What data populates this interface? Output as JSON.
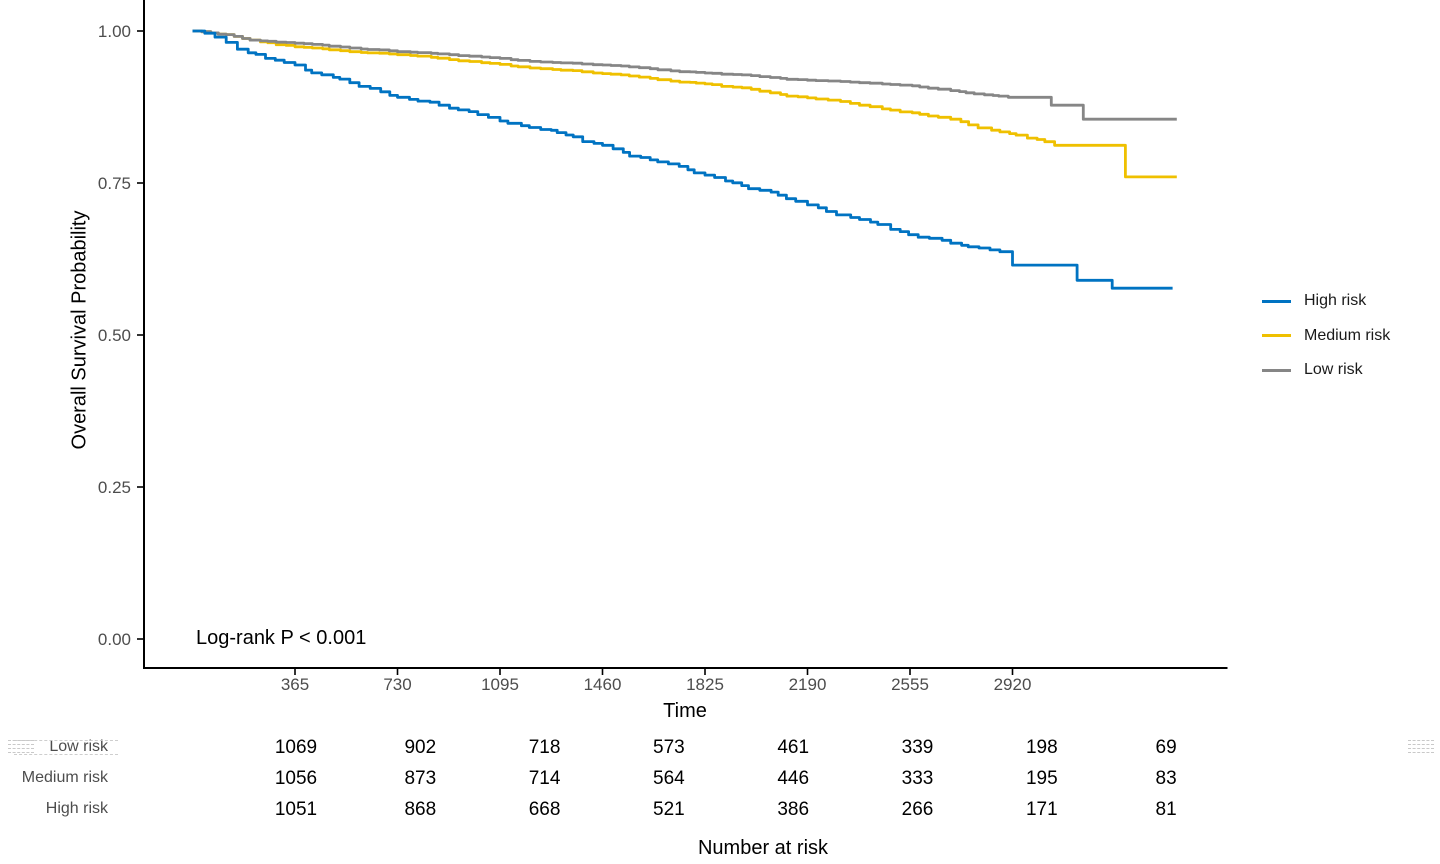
{
  "figure": {
    "ylabel": "Overall Survival Probability",
    "xlabel": "Time",
    "annotation": "Log-rank P < 0.001",
    "risk_table_title": "Number at risk",
    "background": "#ffffff",
    "axis_color": "#000000",
    "tick_text_color": "#4d4d4d"
  },
  "chart_data": {
    "type": "line",
    "subtype": "kaplan-meier-step-curves",
    "title": "",
    "xlabel": "Time",
    "ylabel": "Overall Survival Probability",
    "xlim": [
      0,
      3684
    ],
    "ylim": [
      0,
      1.05
    ],
    "grid": false,
    "legend_position": "right",
    "x_ticks": [
      365,
      730,
      1095,
      1460,
      1825,
      2190,
      2555,
      2920
    ],
    "y_ticks": [
      {
        "label": "1.00",
        "value": 1.0
      },
      {
        "label": "0.75",
        "value": 0.75
      },
      {
        "label": "0.50",
        "value": 0.5
      },
      {
        "label": "0.25",
        "value": 0.25
      },
      {
        "label": "0.00",
        "value": 0.0
      }
    ],
    "annotation": "Log-rank P < 0.001",
    "series": [
      {
        "name": "High risk",
        "color": "#0073C2",
        "points": [
          [
            0,
            1.0
          ],
          [
            80,
            0.99
          ],
          [
            160,
            0.97
          ],
          [
            260,
            0.955
          ],
          [
            365,
            0.944
          ],
          [
            460,
            0.928
          ],
          [
            560,
            0.915
          ],
          [
            670,
            0.9
          ],
          [
            730,
            0.891
          ],
          [
            915,
            0.873
          ],
          [
            1095,
            0.852
          ],
          [
            1240,
            0.838
          ],
          [
            1330,
            0.829
          ],
          [
            1460,
            0.812
          ],
          [
            1630,
            0.788
          ],
          [
            1825,
            0.763
          ],
          [
            2020,
            0.738
          ],
          [
            2190,
            0.714
          ],
          [
            2375,
            0.69
          ],
          [
            2520,
            0.67
          ],
          [
            2700,
            0.651
          ],
          [
            2840,
            0.64
          ],
          [
            2875,
            0.637
          ],
          [
            2920,
            0.615
          ],
          [
            3120,
            0.615
          ],
          [
            3150,
            0.59
          ],
          [
            3268,
            0.59
          ],
          [
            3275,
            0.577
          ],
          [
            3490,
            0.577
          ]
        ]
      },
      {
        "name": "Medium risk",
        "color": "#EFC000",
        "points": [
          [
            0,
            1.0
          ],
          [
            120,
            0.994
          ],
          [
            205,
            0.985
          ],
          [
            365,
            0.974
          ],
          [
            560,
            0.966
          ],
          [
            730,
            0.961
          ],
          [
            915,
            0.953
          ],
          [
            1095,
            0.945
          ],
          [
            1240,
            0.938
          ],
          [
            1460,
            0.93
          ],
          [
            1630,
            0.922
          ],
          [
            1735,
            0.916
          ],
          [
            1825,
            0.913
          ],
          [
            2020,
            0.901
          ],
          [
            2190,
            0.89
          ],
          [
            2375,
            0.878
          ],
          [
            2520,
            0.867
          ],
          [
            2700,
            0.855
          ],
          [
            2875,
            0.834
          ],
          [
            3035,
            0.818
          ],
          [
            3070,
            0.812
          ],
          [
            3315,
            0.812
          ],
          [
            3322,
            0.76
          ],
          [
            3505,
            0.76
          ]
        ]
      },
      {
        "name": "Low risk",
        "color": "#868686",
        "points": [
          [
            0,
            1.0
          ],
          [
            120,
            0.994
          ],
          [
            205,
            0.985
          ],
          [
            365,
            0.98
          ],
          [
            560,
            0.972
          ],
          [
            730,
            0.966
          ],
          [
            915,
            0.961
          ],
          [
            1095,
            0.955
          ],
          [
            1240,
            0.949
          ],
          [
            1460,
            0.944
          ],
          [
            1630,
            0.938
          ],
          [
            1735,
            0.933
          ],
          [
            1825,
            0.931
          ],
          [
            2020,
            0.925
          ],
          [
            2190,
            0.919
          ],
          [
            2375,
            0.915
          ],
          [
            2520,
            0.911
          ],
          [
            2700,
            0.902
          ],
          [
            2820,
            0.895
          ],
          [
            2905,
            0.891
          ],
          [
            3050,
            0.891
          ],
          [
            3058,
            0.878
          ],
          [
            3165,
            0.878
          ],
          [
            3172,
            0.855
          ],
          [
            3505,
            0.855
          ]
        ]
      }
    ],
    "risk_table": {
      "title": "Number at risk",
      "times": [
        365,
        730,
        1095,
        1460,
        1825,
        2190,
        2555,
        2920
      ],
      "rows": [
        {
          "name": "Low risk",
          "counts": [
            1069,
            902,
            718,
            573,
            461,
            339,
            198,
            69
          ]
        },
        {
          "name": "Medium risk",
          "counts": [
            1056,
            873,
            714,
            564,
            446,
            333,
            195,
            83
          ]
        },
        {
          "name": "High risk",
          "counts": [
            1051,
            868,
            668,
            521,
            386,
            266,
            171,
            81
          ]
        }
      ]
    }
  },
  "legend": {
    "items": [
      {
        "label": "High risk",
        "color": "#0073C2"
      },
      {
        "label": "Medium risk",
        "color": "#EFC000"
      },
      {
        "label": "Low risk",
        "color": "#868686"
      }
    ]
  }
}
